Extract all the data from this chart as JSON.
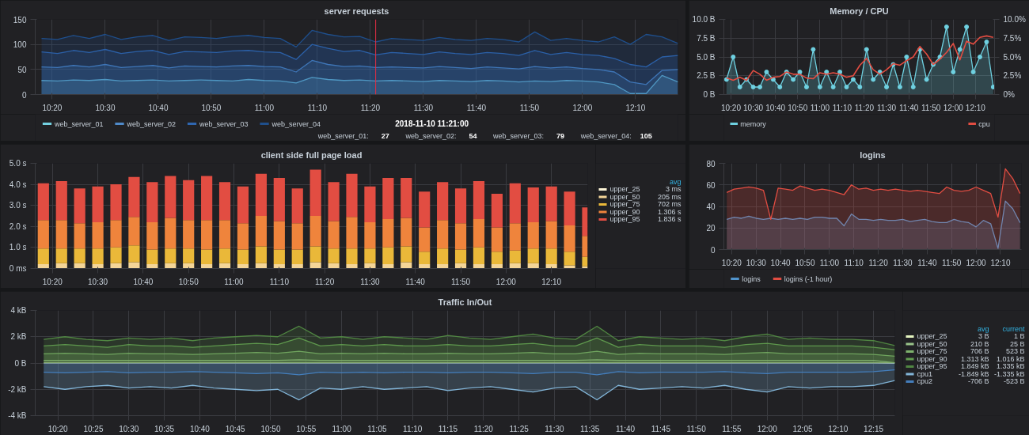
{
  "chart_data": [
    {
      "type": "area",
      "title": "server requests",
      "x": [
        10.3,
        10.35,
        10.4,
        10.45,
        10.5,
        10.55,
        10.6,
        10.65,
        10.7,
        10.75,
        10.8,
        10.85,
        10.9,
        10.95,
        11,
        11.05,
        11.1,
        11.15,
        11.2,
        11.25,
        11.3,
        11.35,
        11.4,
        11.45,
        11.5,
        11.55,
        11.6,
        11.65,
        11.7,
        11.75,
        11.8,
        11.85,
        11.9,
        11.95,
        12,
        12.05,
        12.1,
        12.15,
        12.2,
        12.25,
        12.3
      ],
      "series": [
        {
          "name": "web_server_01",
          "color": "#73d0e0",
          "values": [
            28,
            27,
            29,
            28,
            30,
            27,
            28,
            29,
            27,
            28,
            29,
            28,
            27,
            30,
            28,
            27,
            23,
            34,
            30,
            28,
            29,
            27,
            28,
            27,
            26,
            28,
            27,
            26,
            28,
            27,
            25,
            27,
            26,
            28,
            27,
            25,
            20,
            2,
            2,
            38,
            25
          ]
        },
        {
          "name": "web_server_02",
          "color": "#4f8ac9",
          "values": [
            55,
            54,
            58,
            55,
            60,
            54,
            56,
            58,
            53,
            57,
            56,
            55,
            57,
            58,
            56,
            55,
            45,
            68,
            60,
            56,
            57,
            54,
            55,
            54,
            53,
            56,
            54,
            52,
            55,
            53,
            51,
            56,
            53,
            55,
            52,
            50,
            45,
            25,
            20,
            48,
            50
          ]
        },
        {
          "name": "web_server_03",
          "color": "#2f66b0",
          "values": [
            85,
            82,
            88,
            84,
            90,
            82,
            86,
            88,
            80,
            86,
            85,
            84,
            87,
            88,
            85,
            84,
            70,
            100,
            92,
            86,
            88,
            79,
            84,
            82,
            80,
            85,
            82,
            80,
            84,
            82,
            78,
            88,
            80,
            84,
            80,
            78,
            72,
            60,
            55,
            75,
            78
          ]
        },
        {
          "name": "web_server_04",
          "color": "#1f4f8c",
          "values": [
            112,
            110,
            118,
            112,
            120,
            110,
            115,
            118,
            108,
            115,
            114,
            112,
            116,
            118,
            114,
            112,
            95,
            128,
            120,
            115,
            116,
            105,
            112,
            110,
            108,
            114,
            110,
            108,
            112,
            110,
            105,
            125,
            108,
            112,
            108,
            105,
            115,
            100,
            120,
            115,
            102
          ]
        }
      ],
      "xlim": [
        10.28,
        12.3
      ],
      "ylim": [
        0,
        150
      ],
      "xticks": [
        {
          "value": 10.3333,
          "label": "10:20"
        },
        {
          "value": 10.5,
          "label": "10:30"
        },
        {
          "value": 10.6667,
          "label": "10:40"
        },
        {
          "value": 10.8333,
          "label": "10:50"
        },
        {
          "value": 11,
          "label": "11:00"
        },
        {
          "value": 11.1667,
          "label": "11:10"
        },
        {
          "value": 11.3333,
          "label": "11:20"
        },
        {
          "value": 11.5,
          "label": "11:30"
        },
        {
          "value": 11.6667,
          "label": "11:40"
        },
        {
          "value": 11.8333,
          "label": "11:50"
        },
        {
          "value": 12,
          "label": "12:00"
        },
        {
          "value": 12.1667,
          "label": "12:10"
        }
      ],
      "yticks": [
        0,
        50,
        100,
        150
      ],
      "ref_lines": [
        {
          "axis": "x",
          "value": 11.35,
          "color": "#e02f44"
        }
      ],
      "annotations": [
        "2018-11-10 11:21:00",
        "web_server_01:",
        "27",
        "web_server_02:",
        "54",
        "web_server_03:",
        "79",
        "web_server_04:",
        "105"
      ],
      "grid": true,
      "legend": "bottom"
    },
    {
      "type": "area",
      "title": "Memory / CPU",
      "x": [
        10.3,
        10.35,
        10.4,
        10.45,
        10.5,
        10.55,
        10.6,
        10.65,
        10.7,
        10.75,
        10.8,
        10.85,
        10.9,
        10.95,
        11,
        11.05,
        11.1,
        11.15,
        11.2,
        11.25,
        11.3,
        11.35,
        11.4,
        11.45,
        11.5,
        11.55,
        11.6,
        11.65,
        11.7,
        11.75,
        11.8,
        11.85,
        11.9,
        11.95,
        12,
        12.05,
        12.1,
        12.15,
        12.2,
        12.25,
        12.3
      ],
      "series": [
        {
          "name": "memory",
          "color": "#6ed0e0",
          "marker": "circle",
          "values": [
            2,
            5,
            1,
            2,
            1,
            1,
            3,
            2,
            1,
            3,
            2,
            3,
            1,
            6,
            1,
            3,
            1,
            3,
            1,
            2,
            1,
            6,
            2,
            3,
            1,
            4,
            1,
            5,
            1,
            6,
            2,
            4,
            5,
            9,
            3,
            6,
            9,
            3,
            5,
            7,
            1
          ]
        },
        {
          "name": "cpu",
          "color": "#e24d42",
          "type": "line",
          "axis": "y2",
          "values": [
            2.2,
            1.9,
            2.3,
            1.9,
            3.2,
            2.7,
            1.9,
            2.3,
            2.4,
            3.0,
            2.7,
            2.7,
            2.2,
            2.1,
            2.9,
            2.7,
            2.9,
            2.7,
            2.3,
            2.5,
            3.9,
            4.8,
            3.3,
            2.7,
            3.3,
            4.1,
            3.9,
            4.5,
            5.0,
            6.4,
            5.4,
            4.0,
            4.7,
            5.6,
            6.8,
            4.6,
            7.1,
            6.7,
            7.6,
            7.8,
            7.6
          ]
        }
      ],
      "xlim": [
        10.28,
        12.31
      ],
      "ylim": [
        0,
        10
      ],
      "y2lim": [
        0,
        10
      ],
      "xticks": [
        {
          "value": 10.3333,
          "label": "10:20"
        },
        {
          "value": 10.5,
          "label": "10:30"
        },
        {
          "value": 10.6667,
          "label": "10:40"
        },
        {
          "value": 10.8333,
          "label": "10:50"
        },
        {
          "value": 11,
          "label": "11:00"
        },
        {
          "value": 11.1667,
          "label": "11:10"
        },
        {
          "value": 11.3333,
          "label": "11:20"
        },
        {
          "value": 11.5,
          "label": "11:30"
        },
        {
          "value": 11.6667,
          "label": "11:40"
        },
        {
          "value": 11.8333,
          "label": "11:50"
        },
        {
          "value": 12,
          "label": "12:00"
        },
        {
          "value": 12.1667,
          "label": "12:10"
        }
      ],
      "yticks": [
        {
          "value": 0,
          "label": "0 B"
        },
        {
          "value": 2.5,
          "label": "2.5 B"
        },
        {
          "value": 5,
          "label": "5.0 B"
        },
        {
          "value": 7.5,
          "label": "7.5 B"
        },
        {
          "value": 10,
          "label": "10.0 B"
        }
      ],
      "y2ticks": [
        {
          "value": 0,
          "label": "0%"
        },
        {
          "value": 2.5,
          "label": "2.5%"
        },
        {
          "value": 5,
          "label": "5.0%"
        },
        {
          "value": 7.5,
          "label": "7.5%"
        },
        {
          "value": 10,
          "label": "10.0%"
        }
      ],
      "grid": true,
      "legend": "bottom"
    },
    {
      "type": "bar",
      "stacked": true,
      "title": "client side full page load",
      "x": [
        10.3,
        10.3667,
        10.4333,
        10.5,
        10.5667,
        10.6333,
        10.7,
        10.7667,
        10.8333,
        10.9,
        10.9667,
        11.0333,
        11.1,
        11.1667,
        11.2333,
        11.3,
        11.3667,
        11.4333,
        11.5,
        11.5667,
        11.6333,
        11.7,
        11.7667,
        11.8333,
        11.9,
        11.9667,
        12.0333,
        12.1,
        12.1667,
        12.2333,
        12.3
      ],
      "series": [
        {
          "name": "upper_25",
          "color": "#fcf4d6",
          "values": [
            0.003,
            0.003,
            0.003,
            0.003,
            0.003,
            0.003,
            0.003,
            0.003,
            0.003,
            0.003,
            0.003,
            0.003,
            0.003,
            0.003,
            0.003,
            0.003,
            0.003,
            0.003,
            0.003,
            0.003,
            0.003,
            0.003,
            0.003,
            0.003,
            0.003,
            0.003,
            0.003,
            0.003,
            0.003,
            0.003,
            0.003
          ]
        },
        {
          "name": "upper_50",
          "color": "#f4d598",
          "values": [
            0.2,
            0.25,
            0.25,
            0.2,
            0.25,
            0.3,
            0.2,
            0.25,
            0.25,
            0.2,
            0.25,
            0.2,
            0.25,
            0.2,
            0.2,
            0.3,
            0.25,
            0.2,
            0.25,
            0.2,
            0.3,
            0.2,
            0.2,
            0.25,
            0.2,
            0.2,
            0.25,
            0.25,
            0.2,
            0.15,
            0.1
          ]
        },
        {
          "name": "upper_75",
          "color": "#eab839",
          "values": [
            0.75,
            0.7,
            0.7,
            0.75,
            0.75,
            0.8,
            0.7,
            0.7,
            0.7,
            0.7,
            0.7,
            0.7,
            0.8,
            0.7,
            0.7,
            0.75,
            0.7,
            0.75,
            0.7,
            0.8,
            0.75,
            0.6,
            0.75,
            0.65,
            0.8,
            0.6,
            0.6,
            0.7,
            0.75,
            0.65,
            0.45
          ]
        },
        {
          "name": "upper_90",
          "color": "#ef843c",
          "values": [
            1.35,
            1.35,
            1.2,
            1.25,
            1.3,
            1.35,
            1.3,
            1.45,
            1.35,
            1.4,
            1.35,
            1.25,
            1.45,
            1.35,
            1.25,
            1.45,
            1.3,
            1.5,
            1.25,
            1.35,
            1.35,
            1.15,
            1.35,
            1.25,
            1.35,
            1.15,
            1.3,
            1.25,
            1.3,
            1.25,
            1.0
          ]
        },
        {
          "name": "upper_95",
          "color": "#e24d42",
          "values": [
            1.75,
            1.85,
            1.65,
            1.7,
            1.7,
            1.9,
            1.9,
            2.0,
            1.9,
            2.1,
            1.8,
            1.75,
            2.0,
            2.05,
            1.65,
            2.2,
            1.85,
            2.05,
            1.7,
            1.95,
            1.9,
            1.7,
            1.8,
            1.65,
            1.8,
            1.6,
            1.9,
            1.65,
            1.65,
            1.6,
            1.35
          ]
        }
      ],
      "xlim": [
        10.27,
        12.3
      ],
      "ylim": [
        0,
        5
      ],
      "xticks": [
        {
          "value": 10.3333,
          "label": "10:20"
        },
        {
          "value": 10.5,
          "label": "10:30"
        },
        {
          "value": 10.6667,
          "label": "10:40"
        },
        {
          "value": 10.8333,
          "label": "10:50"
        },
        {
          "value": 11,
          "label": "11:00"
        },
        {
          "value": 11.1667,
          "label": "11:10"
        },
        {
          "value": 11.3333,
          "label": "11:20"
        },
        {
          "value": 11.5,
          "label": "11:30"
        },
        {
          "value": 11.6667,
          "label": "11:40"
        },
        {
          "value": 11.8333,
          "label": "11:50"
        },
        {
          "value": 12,
          "label": "12:00"
        },
        {
          "value": 12.1667,
          "label": "12:10"
        }
      ],
      "yticks": [
        {
          "value": 0,
          "label": "0 ms"
        },
        {
          "value": 1,
          "label": "1.0 s"
        },
        {
          "value": 2,
          "label": "2.0 s"
        },
        {
          "value": 3,
          "label": "3.0 s"
        },
        {
          "value": 4,
          "label": "4.0 s"
        },
        {
          "value": 5,
          "label": "5.0 s"
        }
      ],
      "annotations": [
        "avg",
        "3 ms",
        "205 ms",
        "702 ms",
        "1.306 s",
        "1.836 s"
      ],
      "grid": true,
      "legend": "right"
    },
    {
      "type": "area",
      "title": "logins",
      "x": [
        10.3,
        10.35,
        10.4,
        10.45,
        10.5,
        10.55,
        10.6,
        10.65,
        10.7,
        10.75,
        10.8,
        10.85,
        10.9,
        10.95,
        11,
        11.05,
        11.1,
        11.15,
        11.2,
        11.25,
        11.3,
        11.35,
        11.4,
        11.45,
        11.5,
        11.55,
        11.6,
        11.65,
        11.7,
        11.75,
        11.8,
        11.85,
        11.9,
        11.95,
        12,
        12.05,
        12.1,
        12.15,
        12.2,
        12.25,
        12.3
      ],
      "series": [
        {
          "name": "logins",
          "color": "#5195ce",
          "values": [
            28,
            30,
            29,
            31,
            29,
            28,
            29,
            28,
            29,
            28,
            29,
            28,
            30,
            30,
            29,
            29,
            22,
            33,
            28,
            28,
            27,
            28,
            27,
            27,
            28,
            26,
            27,
            28,
            26,
            25,
            25,
            28,
            26,
            25,
            21,
            27,
            24,
            1,
            45,
            38,
            25
          ]
        },
        {
          "name": "logins (-1 hour)",
          "color": "#e24d42",
          "values": [
            53,
            56,
            57,
            58,
            57,
            55,
            28,
            57,
            56,
            55,
            59,
            57,
            55,
            56,
            55,
            53,
            51,
            60,
            56,
            57,
            55,
            56,
            55,
            56,
            55,
            54,
            55,
            54,
            53,
            52,
            58,
            55,
            54,
            55,
            58,
            55,
            52,
            30,
            75,
            66,
            52
          ]
        }
      ],
      "xlim": [
        10.28,
        12.31
      ],
      "ylim": [
        0,
        80
      ],
      "xticks": [
        {
          "value": 10.3333,
          "label": "10:20"
        },
        {
          "value": 10.5,
          "label": "10:30"
        },
        {
          "value": 10.6667,
          "label": "10:40"
        },
        {
          "value": 10.8333,
          "label": "10:50"
        },
        {
          "value": 11,
          "label": "11:00"
        },
        {
          "value": 11.1667,
          "label": "11:10"
        },
        {
          "value": 11.3333,
          "label": "11:20"
        },
        {
          "value": 11.5,
          "label": "11:30"
        },
        {
          "value": 11.6667,
          "label": "11:40"
        },
        {
          "value": 11.8333,
          "label": "11:50"
        },
        {
          "value": 12,
          "label": "12:00"
        },
        {
          "value": 12.1667,
          "label": "12:10"
        }
      ],
      "yticks": [
        0,
        20,
        40,
        60,
        80
      ],
      "grid": true,
      "legend": "bottom"
    },
    {
      "type": "area",
      "title": "Traffic In/Out",
      "x": [
        10.3,
        10.35,
        10.4,
        10.45,
        10.5,
        10.55,
        10.6,
        10.65,
        10.7,
        10.75,
        10.8,
        10.85,
        10.9,
        10.95,
        11,
        11.05,
        11.1,
        11.15,
        11.2,
        11.25,
        11.3,
        11.35,
        11.4,
        11.45,
        11.5,
        11.55,
        11.6,
        11.65,
        11.7,
        11.75,
        11.8,
        11.85,
        11.9,
        11.95,
        12,
        12.05,
        12.1,
        12.15,
        12.2,
        12.25,
        12.3
      ],
      "series": [
        {
          "name": "upper_25",
          "color": "#e5f5c0",
          "values": [
            0.003,
            0.003,
            0.003,
            0.003,
            0.003,
            0.003,
            0.003,
            0.003,
            0.003,
            0.003,
            0.003,
            0.003,
            0.003,
            0.003,
            0.003,
            0.003,
            0.003,
            0.003,
            0.003,
            0.003,
            0.003,
            0.003,
            0.003,
            0.003,
            0.003,
            0.003,
            0.003,
            0.003,
            0.003,
            0.003,
            0.003,
            0.003,
            0.003,
            0.003,
            0.003,
            0.003,
            0.003,
            0.003,
            0.003,
            0.003,
            0.001
          ]
        },
        {
          "name": "upper_50",
          "color": "#9ac48a",
          "values": [
            0.2,
            0.2,
            0.2,
            0.2,
            0.2,
            0.2,
            0.2,
            0.2,
            0.2,
            0.2,
            0.2,
            0.2,
            0.25,
            0.2,
            0.2,
            0.2,
            0.2,
            0.2,
            0.2,
            0.2,
            0.2,
            0.2,
            0.2,
            0.2,
            0.2,
            0.2,
            0.25,
            0.2,
            0.2,
            0.2,
            0.2,
            0.2,
            0.2,
            0.2,
            0.2,
            0.2,
            0.2,
            0.2,
            0.2,
            0.2,
            0.025
          ]
        },
        {
          "name": "upper_75",
          "color": "#7eb26d",
          "values": [
            0.7,
            0.75,
            0.7,
            0.65,
            0.75,
            0.7,
            0.7,
            0.65,
            0.7,
            0.75,
            0.8,
            0.75,
            0.9,
            0.7,
            0.75,
            0.7,
            0.75,
            0.7,
            0.7,
            0.75,
            0.7,
            0.7,
            0.75,
            0.8,
            0.7,
            0.7,
            0.9,
            0.65,
            0.75,
            0.7,
            0.7,
            0.7,
            0.65,
            0.75,
            0.8,
            0.7,
            0.7,
            0.7,
            0.7,
            0.65,
            0.523
          ]
        },
        {
          "name": "upper_90",
          "color": "#629e51",
          "values": [
            1.3,
            1.4,
            1.3,
            1.2,
            1.4,
            1.3,
            1.3,
            1.2,
            1.3,
            1.4,
            1.5,
            1.4,
            1.9,
            1.3,
            1.4,
            1.3,
            1.4,
            1.3,
            1.3,
            1.4,
            1.3,
            1.3,
            1.4,
            1.5,
            1.3,
            1.3,
            1.9,
            1.2,
            1.4,
            1.3,
            1.3,
            1.3,
            1.2,
            1.4,
            1.5,
            1.3,
            1.3,
            1.3,
            1.3,
            1.2,
            1.016
          ]
        },
        {
          "name": "upper_95",
          "color": "#508642",
          "values": [
            1.8,
            2.0,
            1.8,
            1.7,
            1.9,
            1.8,
            1.9,
            1.7,
            1.9,
            2.0,
            2.1,
            2.0,
            2.8,
            1.9,
            2.0,
            1.8,
            2.0,
            1.9,
            1.8,
            2.1,
            1.9,
            1.8,
            2.0,
            2.2,
            1.9,
            1.8,
            2.8,
            1.7,
            2.0,
            1.9,
            1.8,
            1.9,
            1.7,
            2.0,
            2.2,
            1.8,
            1.9,
            1.8,
            1.8,
            1.7,
            1.335
          ]
        },
        {
          "name": "cpu1",
          "color": "#82b5d8",
          "values": [
            -1.8,
            -2.0,
            -1.8,
            -1.7,
            -1.9,
            -1.8,
            -1.9,
            -1.7,
            -1.9,
            -2.0,
            -2.1,
            -2.0,
            -2.8,
            -1.9,
            -2.0,
            -1.8,
            -2.0,
            -1.9,
            -1.8,
            -2.1,
            -1.9,
            -1.8,
            -2.0,
            -2.2,
            -1.9,
            -1.8,
            -2.8,
            -1.7,
            -2.0,
            -1.9,
            -1.8,
            -1.9,
            -1.7,
            -2.0,
            -2.2,
            -1.8,
            -1.9,
            -1.8,
            -1.8,
            -1.7,
            -1.335
          ]
        },
        {
          "name": "cpu2",
          "color": "#447ebc",
          "values": [
            -0.7,
            -0.75,
            -0.7,
            -0.65,
            -0.75,
            -0.7,
            -0.7,
            -0.65,
            -0.7,
            -0.75,
            -0.8,
            -0.75,
            -0.9,
            -0.7,
            -0.75,
            -0.7,
            -0.75,
            -0.7,
            -0.7,
            -0.75,
            -0.7,
            -0.7,
            -0.75,
            -0.8,
            -0.7,
            -0.7,
            -0.9,
            -0.65,
            -0.75,
            -0.7,
            -0.7,
            -0.7,
            -0.65,
            -0.75,
            -0.8,
            -0.7,
            -0.7,
            -0.7,
            -0.7,
            -0.65,
            -0.523
          ]
        }
      ],
      "xlim": [
        10.28,
        12.3
      ],
      "ylim": [
        -4,
        4
      ],
      "xticks": [
        {
          "value": 10.3333,
          "label": "10:20"
        },
        {
          "value": 10.4167,
          "label": "10:25"
        },
        {
          "value": 10.5,
          "label": "10:30"
        },
        {
          "value": 10.5833,
          "label": "10:35"
        },
        {
          "value": 10.6667,
          "label": "10:40"
        },
        {
          "value": 10.75,
          "label": "10:45"
        },
        {
          "value": 10.8333,
          "label": "10:50"
        },
        {
          "value": 10.9167,
          "label": "10:55"
        },
        {
          "value": 11,
          "label": "11:00"
        },
        {
          "value": 11.0833,
          "label": "11:05"
        },
        {
          "value": 11.1667,
          "label": "11:10"
        },
        {
          "value": 11.25,
          "label": "11:15"
        },
        {
          "value": 11.3333,
          "label": "11:20"
        },
        {
          "value": 11.4167,
          "label": "11:25"
        },
        {
          "value": 11.5,
          "label": "11:30"
        },
        {
          "value": 11.5833,
          "label": "11:35"
        },
        {
          "value": 11.6667,
          "label": "11:40"
        },
        {
          "value": 11.75,
          "label": "11:45"
        },
        {
          "value": 11.8333,
          "label": "11:50"
        },
        {
          "value": 11.9167,
          "label": "11:55"
        },
        {
          "value": 12,
          "label": "12:00"
        },
        {
          "value": 12.0833,
          "label": "12:05"
        },
        {
          "value": 12.1667,
          "label": "12:10"
        },
        {
          "value": 12.25,
          "label": "12:15"
        }
      ],
      "yticks": [
        {
          "value": -4,
          "label": "-4 kB"
        },
        {
          "value": -2,
          "label": "-2 kB"
        },
        {
          "value": 0,
          "label": "0 B"
        },
        {
          "value": 2,
          "label": "2 kB"
        },
        {
          "value": 4,
          "label": "4 kB"
        }
      ],
      "annotations": [
        "avg",
        "current",
        "3 B",
        "1 B",
        "210 B",
        "25 B",
        "706 B",
        "523 B",
        "1.313 kB",
        "1.016 kB",
        "1.849 kB",
        "1.335 kB",
        "-1.849 kB",
        "-1.335 kB",
        "-706 B",
        "-523 B"
      ],
      "grid": true,
      "legend": "right"
    }
  ]
}
